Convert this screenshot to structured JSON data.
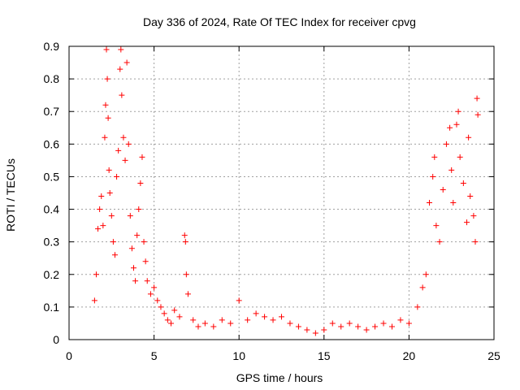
{
  "chart_data": {
    "type": "scatter",
    "title": "Day 336 of 2024, Rate Of TEC Index for receiver cpvg",
    "xlabel": "GPS time / hours",
    "ylabel": "ROTI / TECUs",
    "xlim": [
      0,
      25
    ],
    "ylim": [
      0,
      0.9
    ],
    "xticks": [
      0,
      5,
      10,
      15,
      20,
      25
    ],
    "xtick_labels": [
      "0",
      "5",
      "10",
      "15",
      "20",
      "25"
    ],
    "yticks": [
      0,
      0.1,
      0.2,
      0.3,
      0.4,
      0.5,
      0.6,
      0.7,
      0.8,
      0.9
    ],
    "ytick_labels": [
      "0",
      "0.1",
      "0.2",
      "0.3",
      "0.4",
      "0.5",
      "0.6",
      "0.7",
      "0.8",
      "0.9"
    ],
    "grid": true,
    "marker": "plus",
    "color": "#ff0000",
    "series": [
      {
        "points": [
          [
            1.5,
            0.12
          ],
          [
            1.6,
            0.2
          ],
          [
            1.7,
            0.34
          ],
          [
            1.8,
            0.4
          ],
          [
            1.9,
            0.44
          ],
          [
            2.0,
            0.35
          ],
          [
            2.1,
            0.62
          ],
          [
            2.15,
            0.72
          ],
          [
            2.2,
            0.89
          ],
          [
            2.25,
            0.8
          ],
          [
            2.3,
            0.68
          ],
          [
            2.35,
            0.52
          ],
          [
            2.4,
            0.45
          ],
          [
            2.5,
            0.38
          ],
          [
            2.6,
            0.3
          ],
          [
            2.7,
            0.26
          ],
          [
            2.8,
            0.5
          ],
          [
            2.9,
            0.58
          ],
          [
            3.0,
            0.83
          ],
          [
            3.05,
            0.89
          ],
          [
            3.1,
            0.75
          ],
          [
            3.2,
            0.62
          ],
          [
            3.3,
            0.55
          ],
          [
            3.4,
            0.85
          ],
          [
            3.5,
            0.6
          ],
          [
            3.6,
            0.38
          ],
          [
            3.7,
            0.28
          ],
          [
            3.8,
            0.22
          ],
          [
            3.9,
            0.18
          ],
          [
            4.0,
            0.32
          ],
          [
            4.1,
            0.4
          ],
          [
            4.2,
            0.48
          ],
          [
            4.3,
            0.56
          ],
          [
            4.4,
            0.3
          ],
          [
            4.5,
            0.24
          ],
          [
            4.6,
            0.18
          ],
          [
            4.8,
            0.14
          ],
          [
            5.0,
            0.16
          ],
          [
            5.2,
            0.12
          ],
          [
            5.4,
            0.1
          ],
          [
            5.6,
            0.08
          ],
          [
            5.8,
            0.06
          ],
          [
            6.0,
            0.05
          ],
          [
            6.2,
            0.09
          ],
          [
            6.5,
            0.07
          ],
          [
            6.8,
            0.32
          ],
          [
            6.85,
            0.3
          ],
          [
            6.9,
            0.2
          ],
          [
            7.0,
            0.14
          ],
          [
            7.3,
            0.06
          ],
          [
            7.6,
            0.04
          ],
          [
            8.0,
            0.05
          ],
          [
            8.5,
            0.04
          ],
          [
            9.0,
            0.06
          ],
          [
            9.5,
            0.05
          ],
          [
            10.0,
            0.12
          ],
          [
            10.5,
            0.06
          ],
          [
            11.0,
            0.08
          ],
          [
            11.5,
            0.07
          ],
          [
            12.0,
            0.06
          ],
          [
            12.5,
            0.07
          ],
          [
            13.0,
            0.05
          ],
          [
            13.5,
            0.04
          ],
          [
            14.0,
            0.03
          ],
          [
            14.5,
            0.02
          ],
          [
            15.0,
            0.03
          ],
          [
            15.5,
            0.05
          ],
          [
            16.0,
            0.04
          ],
          [
            16.5,
            0.05
          ],
          [
            17.0,
            0.04
          ],
          [
            17.5,
            0.03
          ],
          [
            18.0,
            0.04
          ],
          [
            18.5,
            0.05
          ],
          [
            19.0,
            0.04
          ],
          [
            19.5,
            0.06
          ],
          [
            20.0,
            0.05
          ],
          [
            20.5,
            0.1
          ],
          [
            20.8,
            0.16
          ],
          [
            21.0,
            0.2
          ],
          [
            21.2,
            0.42
          ],
          [
            21.4,
            0.5
          ],
          [
            21.5,
            0.56
          ],
          [
            21.6,
            0.35
          ],
          [
            21.8,
            0.3
          ],
          [
            22.0,
            0.46
          ],
          [
            22.2,
            0.6
          ],
          [
            22.4,
            0.65
          ],
          [
            22.5,
            0.52
          ],
          [
            22.6,
            0.42
          ],
          [
            22.8,
            0.66
          ],
          [
            22.9,
            0.7
          ],
          [
            23.0,
            0.56
          ],
          [
            23.2,
            0.48
          ],
          [
            23.4,
            0.36
          ],
          [
            23.5,
            0.62
          ],
          [
            23.6,
            0.44
          ],
          [
            23.8,
            0.38
          ],
          [
            23.9,
            0.3
          ],
          [
            24.0,
            0.74
          ],
          [
            24.05,
            0.69
          ]
        ]
      }
    ]
  }
}
